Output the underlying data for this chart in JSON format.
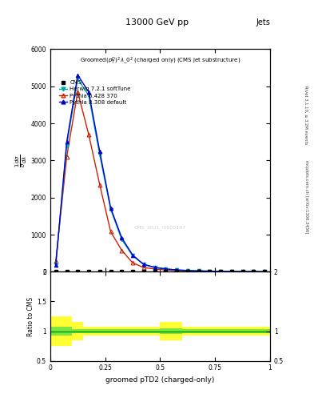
{
  "title_top": "13000 GeV pp",
  "title_right": "Jets",
  "plot_title": "Groomed$(p_T^D)^2\\lambda\\_0^2$ (charged only) (CMS jet substructure)",
  "xlabel": "groomed pTD2 (charged-only)",
  "ylabel_ratio": "Ratio to CMS",
  "right_label": "Rivet 3.1.10, ≥ 3.2M events",
  "right_label2": "mcplots.cern.ch [arXiv:1306.3436]",
  "watermark": "CMS_2021_I1920187",
  "herwig_x": [
    0.025,
    0.075,
    0.125,
    0.175,
    0.225,
    0.275,
    0.325,
    0.375,
    0.425,
    0.475,
    0.525,
    0.575,
    0.625,
    0.675,
    0.725,
    0.775,
    0.825,
    0.875,
    0.925,
    0.975
  ],
  "herwig_y": [
    180,
    3400,
    5200,
    4750,
    3150,
    1680,
    870,
    430,
    195,
    115,
    75,
    48,
    32,
    22,
    16,
    11,
    8,
    6,
    4,
    3
  ],
  "pythia6_x": [
    0.025,
    0.075,
    0.125,
    0.175,
    0.225,
    0.275,
    0.325,
    0.375,
    0.425,
    0.475,
    0.525,
    0.575,
    0.625,
    0.675,
    0.725,
    0.775,
    0.825,
    0.875,
    0.925,
    0.975
  ],
  "pythia6_y": [
    280,
    3100,
    4850,
    3700,
    2350,
    1080,
    580,
    240,
    115,
    75,
    50,
    32,
    20,
    13,
    9,
    6,
    4,
    3,
    2,
    2
  ],
  "pythia8_x": [
    0.025,
    0.075,
    0.125,
    0.175,
    0.225,
    0.275,
    0.325,
    0.375,
    0.425,
    0.475,
    0.525,
    0.575,
    0.625,
    0.675,
    0.725,
    0.775,
    0.825,
    0.875,
    0.925,
    0.975
  ],
  "pythia8_y": [
    180,
    3500,
    5300,
    4850,
    3250,
    1720,
    920,
    450,
    200,
    120,
    78,
    50,
    35,
    24,
    17,
    12,
    8,
    6,
    4,
    3
  ],
  "cms_x": [
    0.025,
    0.075,
    0.125,
    0.175,
    0.225,
    0.275,
    0.325,
    0.375,
    0.425,
    0.475,
    0.525,
    0.575,
    0.625,
    0.675,
    0.725,
    0.775,
    0.825,
    0.875,
    0.925,
    0.975
  ],
  "cms_y": [
    2,
    2,
    2,
    2,
    2,
    2,
    2,
    2,
    2,
    2,
    2,
    2,
    2,
    2,
    2,
    2,
    2,
    2,
    2,
    2
  ],
  "herwig_color": "#00AAAA",
  "pythia6_color": "#CC2200",
  "pythia8_color": "#0000CC",
  "cms_color": "#000000",
  "ylim_main": [
    0,
    6000
  ],
  "ylim_ratio": [
    0.5,
    2.0
  ],
  "xlim": [
    0.0,
    1.0
  ],
  "yticks_main": [
    0,
    1000,
    2000,
    3000,
    4000,
    5000,
    6000
  ],
  "yticks_ratio_left": [
    0.5,
    1.0,
    1.5,
    2.0
  ],
  "yticks_ratio_right": [
    0.5,
    1.0,
    2.0
  ],
  "xticks": [
    0.0,
    0.25,
    0.5,
    0.75,
    1.0
  ],
  "xtick_labels": [
    "0",
    "0.25",
    "0.5",
    "0.75",
    "1"
  ]
}
